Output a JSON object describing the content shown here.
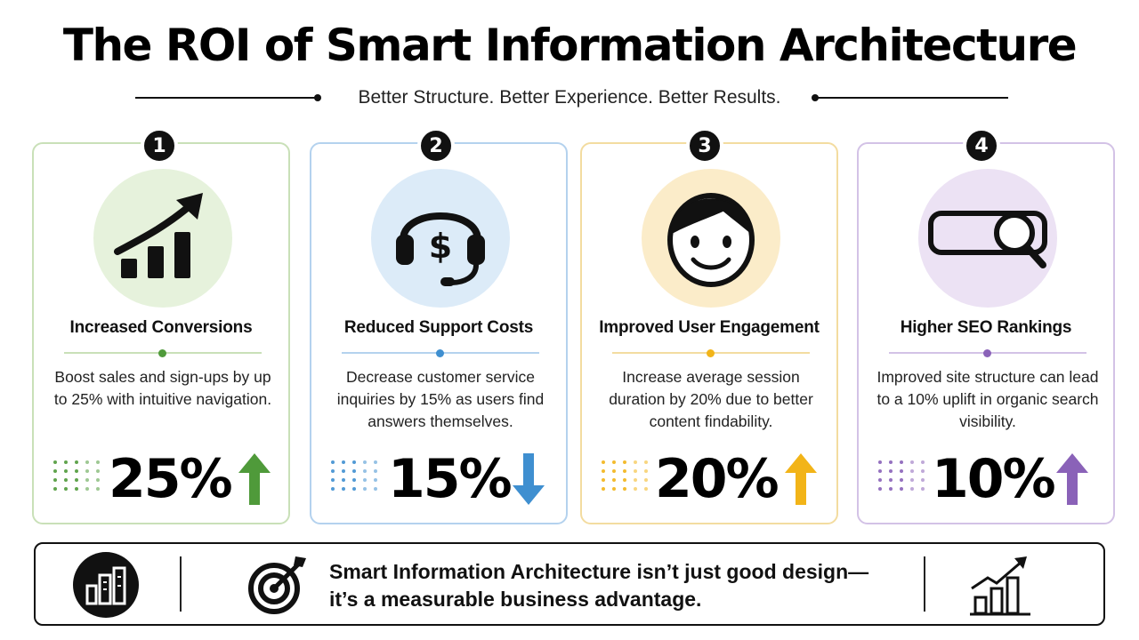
{
  "title": "The ROI of Smart Information Architecture",
  "subtitle": "Better Structure. Better Experience. Better Results.",
  "cards": [
    {
      "number": "1",
      "title": "Increased Conversions",
      "description": "Boost sales and sign-ups by up to 25% with intuitive navigation.",
      "stat": "25%",
      "direction": "up",
      "icon": "bar-chart-growth-icon",
      "accent": "#4f9a3a",
      "tint": "#e6f2dc",
      "border": "#c9e0b8"
    },
    {
      "number": "2",
      "title": "Reduced Support Costs",
      "description": "Decrease customer service inquiries by 15% as users find answers themselves.",
      "stat": "15%",
      "direction": "down",
      "icon": "headset-dollar-icon",
      "accent": "#3f8fd0",
      "tint": "#dcebf8",
      "border": "#b4d2ee"
    },
    {
      "number": "3",
      "title": "Improved User Engagement",
      "description": "Increase average session duration by 20% due to better content findability.",
      "stat": "20%",
      "direction": "up",
      "icon": "smiling-face-icon",
      "accent": "#f2b418",
      "tint": "#fbecc9",
      "border": "#f3dca0"
    },
    {
      "number": "4",
      "title": "Higher SEO Rankings",
      "description": "Improved site structure can lead to a 10% uplift in organic search visibility.",
      "stat": "10%",
      "direction": "up",
      "icon": "search-bar-magnifier-icon",
      "accent": "#8a62b8",
      "tint": "#ece2f4",
      "border": "#d3c2e6"
    }
  ],
  "footer": {
    "line1": "Smart Information Architecture isn’t just good design—",
    "line2": "it’s a measurable business advantage.",
    "left_icon": "building-chart-icon",
    "middle_icon": "target-arrow-icon",
    "right_icon": "growth-chart-icon"
  }
}
